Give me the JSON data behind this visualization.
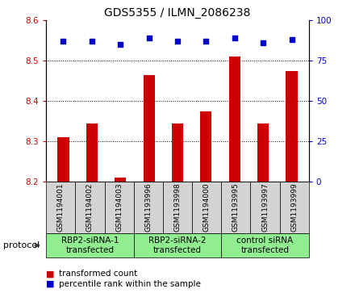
{
  "title": "GDS5355 / ILMN_2086238",
  "samples": [
    "GSM1194001",
    "GSM1194002",
    "GSM1194003",
    "GSM1193996",
    "GSM1193998",
    "GSM1194000",
    "GSM1193995",
    "GSM1193997",
    "GSM1193999"
  ],
  "bar_values": [
    8.31,
    8.345,
    8.21,
    8.465,
    8.345,
    8.375,
    8.51,
    8.345,
    8.475
  ],
  "percentile_values": [
    87,
    87,
    85,
    89,
    87,
    87,
    89,
    86,
    88
  ],
  "bar_bottom": 8.2,
  "ylim_left": [
    8.2,
    8.6
  ],
  "ylim_right": [
    0,
    100
  ],
  "yticks_left": [
    8.2,
    8.3,
    8.4,
    8.5,
    8.6
  ],
  "yticks_right": [
    0,
    25,
    50,
    75,
    100
  ],
  "bar_color": "#cc0000",
  "dot_color": "#0000cc",
  "groups": [
    {
      "label": "RBP2-siRNA-1\ntransfected",
      "start": 0,
      "end": 3,
      "color": "#90ee90"
    },
    {
      "label": "RBP2-siRNA-2\ntransfected",
      "start": 3,
      "end": 6,
      "color": "#90ee90"
    },
    {
      "label": "control siRNA\ntransfected",
      "start": 6,
      "end": 9,
      "color": "#90ee90"
    }
  ],
  "protocol_label": "protocol",
  "legend_bar_label": "transformed count",
  "legend_dot_label": "percentile rank within the sample",
  "tick_color_left": "#cc0000",
  "tick_color_right": "#0000cc",
  "sample_bg_color": "#d3d3d3",
  "plot_bg": "#ffffff",
  "bar_width": 0.4,
  "dot_size": 18,
  "title_fontsize": 10,
  "tick_fontsize": 7.5,
  "sample_fontsize": 6.5,
  "group_fontsize": 7.5,
  "legend_fontsize": 7.5
}
